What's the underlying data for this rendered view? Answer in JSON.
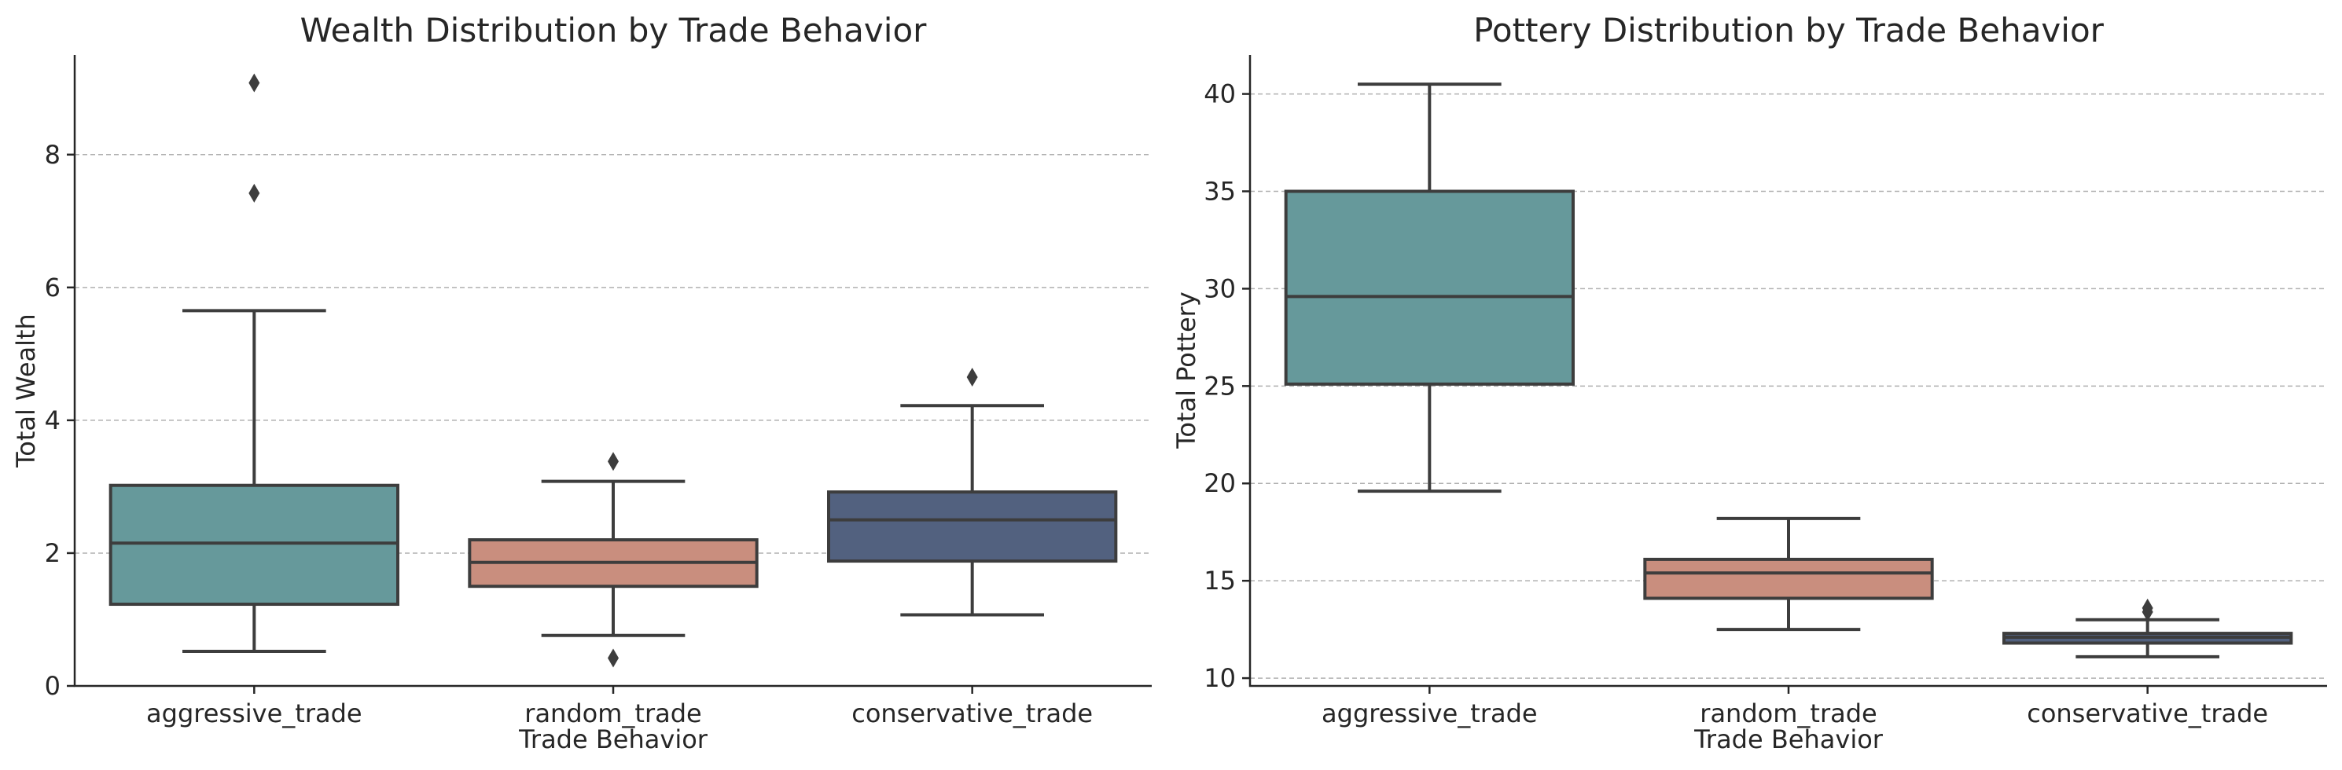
{
  "chart_data": [
    {
      "type": "box",
      "title": "Wealth Distribution by Trade Behavior",
      "xlabel": "Trade Behavior",
      "ylabel": "Total Wealth",
      "categories": [
        "aggressive_trade",
        "random_trade",
        "conservative_trade"
      ],
      "ylim": [
        0,
        9.5
      ],
      "yticks": [
        0,
        2,
        4,
        6,
        8
      ],
      "grid": "y-dashed",
      "boxes": [
        {
          "category": "aggressive_trade",
          "whisker_low": 0.52,
          "q1": 1.23,
          "median": 2.15,
          "q3": 3.02,
          "whisker_high": 5.65,
          "outliers": [
            7.42,
            9.08
          ]
        },
        {
          "category": "random_trade",
          "whisker_low": 0.76,
          "q1": 1.5,
          "median": 1.86,
          "q3": 2.2,
          "whisker_high": 3.08,
          "outliers": [
            0.42,
            3.38
          ]
        },
        {
          "category": "conservative_trade",
          "whisker_low": 1.07,
          "q1": 1.88,
          "median": 2.5,
          "q3": 2.92,
          "whisker_high": 4.22,
          "outliers": [
            4.65
          ]
        }
      ],
      "colors": [
        "#66999b",
        "#c98e7e",
        "#52617f"
      ]
    },
    {
      "type": "box",
      "title": "Pottery Distribution by Trade Behavior",
      "xlabel": "Trade Behavior",
      "ylabel": "Total Pottery",
      "categories": [
        "aggressive_trade",
        "random_trade",
        "conservative_trade"
      ],
      "ylim": [
        9.6,
        42
      ],
      "yticks": [
        10,
        15,
        20,
        25,
        30,
        35,
        40
      ],
      "grid": "y-dashed",
      "boxes": [
        {
          "category": "aggressive_trade",
          "whisker_low": 19.6,
          "q1": 25.1,
          "median": 29.6,
          "q3": 35.0,
          "whisker_high": 40.5,
          "outliers": []
        },
        {
          "category": "random_trade",
          "whisker_low": 12.5,
          "q1": 14.1,
          "median": 15.4,
          "q3": 16.1,
          "whisker_high": 18.2,
          "outliers": []
        },
        {
          "category": "conservative_trade",
          "whisker_low": 11.1,
          "q1": 11.8,
          "median": 12.1,
          "q3": 12.3,
          "whisker_high": 13.0,
          "outliers": [
            13.4,
            13.6
          ]
        }
      ],
      "colors": [
        "#66999b",
        "#c98e7e",
        "#52617f"
      ]
    }
  ]
}
